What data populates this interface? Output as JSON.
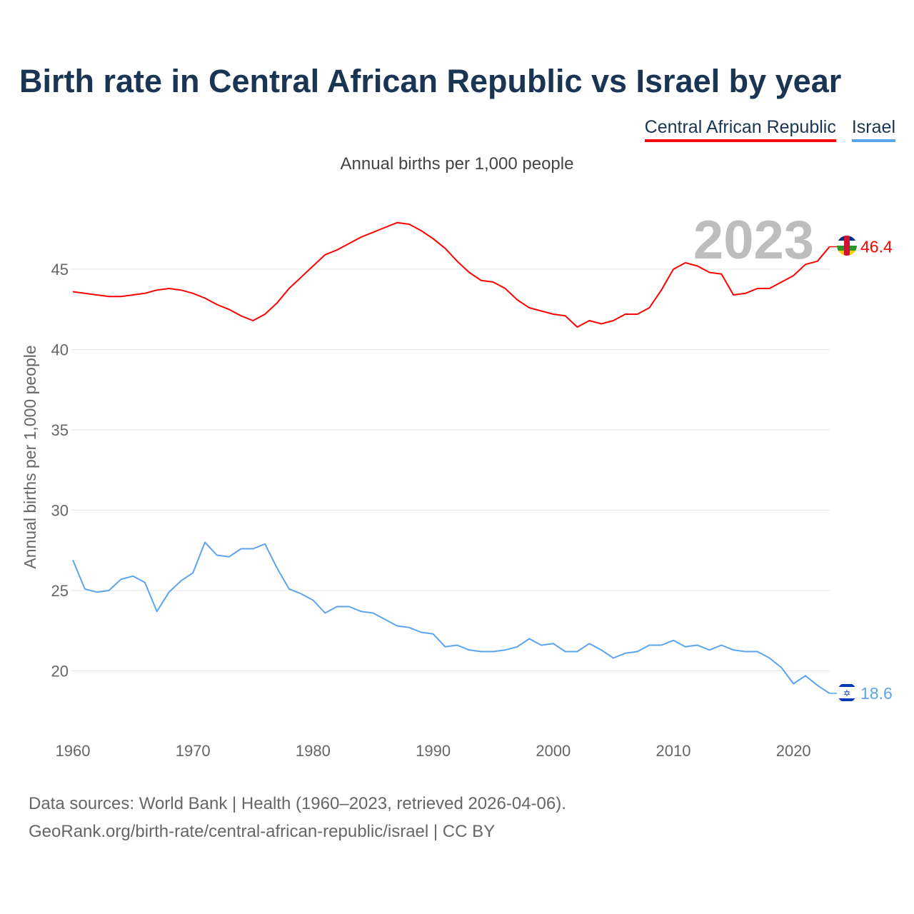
{
  "chart_data": {
    "type": "line",
    "title": "Birth rate in Central African Republic vs Israel by year",
    "subtitle": "Annual births per 1,000 people",
    "ylabel": "Annual births per 1,000 people",
    "xlabel": "",
    "year_label": "2023",
    "ylim": [
      16.5,
      48.5
    ],
    "xlim": [
      1960,
      2023
    ],
    "yticks": [
      20,
      25,
      30,
      35,
      40,
      45
    ],
    "xticks": [
      1960,
      1970,
      1980,
      1990,
      2000,
      2010,
      2020
    ],
    "grid": true,
    "legend_position": "top-right",
    "x": [
      1960,
      1961,
      1962,
      1963,
      1964,
      1965,
      1966,
      1967,
      1968,
      1969,
      1970,
      1971,
      1972,
      1973,
      1974,
      1975,
      1976,
      1977,
      1978,
      1979,
      1980,
      1981,
      1982,
      1983,
      1984,
      1985,
      1986,
      1987,
      1988,
      1989,
      1990,
      1991,
      1992,
      1993,
      1994,
      1995,
      1996,
      1997,
      1998,
      1999,
      2000,
      2001,
      2002,
      2003,
      2004,
      2005,
      2006,
      2007,
      2008,
      2009,
      2010,
      2011,
      2012,
      2013,
      2014,
      2015,
      2016,
      2017,
      2018,
      2019,
      2020,
      2021,
      2022,
      2023
    ],
    "series": [
      {
        "name": "Central African Republic",
        "color": "#ff0000",
        "end_label": "46.4",
        "values": [
          43.6,
          43.5,
          43.4,
          43.3,
          43.3,
          43.4,
          43.5,
          43.7,
          43.8,
          43.7,
          43.5,
          43.2,
          42.8,
          42.5,
          42.1,
          41.8,
          42.2,
          42.9,
          43.8,
          44.5,
          45.2,
          45.9,
          46.2,
          46.6,
          47.0,
          47.3,
          47.6,
          47.9,
          47.8,
          47.4,
          46.9,
          46.3,
          45.5,
          44.8,
          44.3,
          44.2,
          43.8,
          43.1,
          42.6,
          42.4,
          42.2,
          42.1,
          41.4,
          41.8,
          41.6,
          41.8,
          42.2,
          42.2,
          42.6,
          43.7,
          45.0,
          45.4,
          45.2,
          44.8,
          44.7,
          43.4,
          43.5,
          43.8,
          43.8,
          44.2,
          44.6,
          45.3,
          45.5,
          46.4
        ]
      },
      {
        "name": "Israel",
        "color": "#5ba4ee",
        "end_label": "18.6",
        "values": [
          26.9,
          25.1,
          24.9,
          25.0,
          25.7,
          25.9,
          25.5,
          23.7,
          24.9,
          25.6,
          26.1,
          28.0,
          27.2,
          27.1,
          27.6,
          27.6,
          27.9,
          26.4,
          25.1,
          24.8,
          24.4,
          23.6,
          24.0,
          24.0,
          23.7,
          23.6,
          23.2,
          22.8,
          22.7,
          22.4,
          22.3,
          21.5,
          21.6,
          21.3,
          21.2,
          21.2,
          21.3,
          21.5,
          22.0,
          21.6,
          21.7,
          21.2,
          21.2,
          21.7,
          21.3,
          20.8,
          21.1,
          21.2,
          21.6,
          21.6,
          21.9,
          21.5,
          21.6,
          21.3,
          21.6,
          21.3,
          21.2,
          21.2,
          20.8,
          20.2,
          19.2,
          19.7,
          19.1,
          18.6
        ]
      }
    ]
  },
  "footer": {
    "line1": "Data sources: World Bank | Health (1960–2023, retrieved 2026-04-06).",
    "line2": "GeoRank.org/birth-rate/central-african-republic/israel | CC BY"
  }
}
